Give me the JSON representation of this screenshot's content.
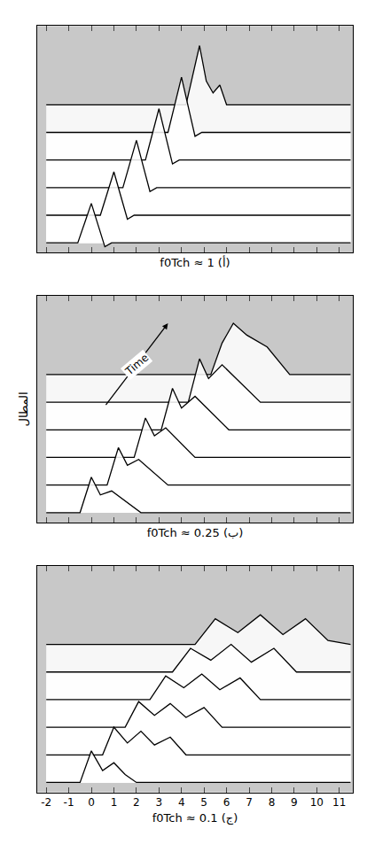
{
  "chart_data": [
    {
      "type": "line",
      "xlabel": "f0Tch ≈ 1 (أ)",
      "xlim": [
        -2.4,
        11.6
      ],
      "xticks": [
        -2,
        -1,
        0,
        1,
        2,
        3,
        4,
        5,
        6,
        7,
        8,
        9,
        10,
        11
      ],
      "ylim": [
        -0.5,
        11
      ],
      "tick_labels": false,
      "series": [
        {
          "color": "#000000",
          "x": [
            -2,
            -0.6,
            -0.3,
            0,
            0.3,
            0.6,
            0.9,
            11.5
          ],
          "values": [
            0,
            0,
            1.0,
            2.0,
            0.9,
            -0.2,
            0,
            0
          ]
        },
        {
          "color": "#000000",
          "x": [
            -2,
            0.4,
            0.7,
            1,
            1.3,
            1.6,
            1.9,
            11.5
          ],
          "values": [
            1.4,
            1.4,
            2.5,
            3.6,
            2.4,
            1.2,
            1.4,
            1.4
          ]
        },
        {
          "color": "#000000",
          "x": [
            -2,
            1.4,
            1.7,
            2,
            2.3,
            2.6,
            2.9,
            11.5
          ],
          "values": [
            2.8,
            2.8,
            4.0,
            5.2,
            3.9,
            2.6,
            2.8,
            2.8
          ]
        },
        {
          "color": "#000000",
          "x": [
            -2,
            2.4,
            2.7,
            3,
            3.3,
            3.6,
            3.9,
            11.5
          ],
          "values": [
            4.2,
            4.2,
            5.5,
            6.8,
            5.4,
            4.0,
            4.2,
            4.2
          ]
        },
        {
          "color": "#000000",
          "x": [
            -2,
            3.4,
            3.7,
            4,
            4.3,
            4.6,
            4.9,
            11.5
          ],
          "values": [
            5.6,
            5.6,
            7.0,
            8.4,
            6.9,
            5.4,
            5.6,
            5.6
          ]
        },
        {
          "color": "#000000",
          "x": [
            -2,
            4.2,
            4.5,
            4.8,
            5.1,
            5.4,
            5.7,
            6.0,
            11.5
          ],
          "values": [
            7.0,
            7.0,
            8.5,
            10.0,
            8.2,
            7.6,
            8.0,
            7.0,
            7.0
          ]
        }
      ]
    },
    {
      "type": "line",
      "xlabel": "f0Tch ≈ 0.25 (ب)",
      "ylabel": "المطال",
      "xlim": [
        -2.4,
        11.6
      ],
      "xticks": [
        -2,
        -1,
        0,
        1,
        2,
        3,
        4,
        5,
        6,
        7,
        8,
        9,
        10,
        11
      ],
      "ylim": [
        -0.5,
        11
      ],
      "tick_labels": false,
      "annotations": [
        {
          "text": "Time",
          "x": 3.4,
          "y": 9.6,
          "from_x": 0.6,
          "from_y": 5.4
        }
      ],
      "series": [
        {
          "color": "#000000",
          "x": [
            -2,
            -0.5,
            0,
            0.4,
            0.9,
            1.5,
            2.2,
            11.5
          ],
          "values": [
            0,
            0,
            1.8,
            0.9,
            1.1,
            0.6,
            0,
            0
          ]
        },
        {
          "color": "#000000",
          "x": [
            -2,
            0.7,
            1.2,
            1.6,
            2.1,
            2.7,
            3.4,
            11.5
          ],
          "values": [
            1.4,
            1.4,
            3.3,
            2.4,
            2.7,
            2.1,
            1.4,
            1.4
          ]
        },
        {
          "color": "#000000",
          "x": [
            -2,
            1.9,
            2.4,
            2.8,
            3.3,
            3.9,
            4.6,
            11.5
          ],
          "values": [
            2.8,
            2.8,
            4.8,
            3.9,
            4.3,
            3.6,
            2.8,
            2.8
          ]
        },
        {
          "color": "#000000",
          "x": [
            -2,
            3.1,
            3.6,
            4.0,
            4.6,
            5.3,
            6.1,
            11.5
          ],
          "values": [
            4.2,
            4.2,
            6.3,
            5.3,
            5.9,
            5.1,
            4.2,
            4.2
          ]
        },
        {
          "color": "#000000",
          "x": [
            -2,
            4.3,
            4.8,
            5.2,
            5.8,
            6.6,
            7.5,
            11.5
          ],
          "values": [
            5.6,
            5.6,
            7.8,
            6.8,
            7.5,
            6.6,
            5.6,
            5.6
          ]
        },
        {
          "color": "#000000",
          "x": [
            -2,
            5.3,
            5.8,
            6.3,
            6.9,
            7.8,
            8.8,
            11.5
          ],
          "values": [
            7.0,
            7.0,
            8.6,
            9.6,
            9.0,
            8.4,
            7.0,
            7.0
          ]
        }
      ]
    },
    {
      "type": "line",
      "xlabel": "f0Tch ≈ 0.1 (ج)",
      "xlim": [
        -2.4,
        11.6
      ],
      "xticks": [
        -2,
        -1,
        0,
        1,
        2,
        3,
        4,
        5,
        6,
        7,
        8,
        9,
        10,
        11
      ],
      "ylim": [
        -0.5,
        11
      ],
      "tick_labels": "x",
      "series": [
        {
          "color": "#000000",
          "x": [
            -2,
            -0.5,
            0,
            0.5,
            1,
            1.5,
            2,
            11.5
          ],
          "values": [
            0,
            0,
            1.6,
            0.6,
            1.0,
            0.4,
            0,
            0
          ]
        },
        {
          "color": "#000000",
          "x": [
            -2,
            0.5,
            1,
            1.6,
            2.2,
            2.8,
            3.5,
            4.2,
            11.5
          ],
          "values": [
            1.4,
            1.4,
            2.8,
            2.0,
            2.6,
            1.9,
            2.3,
            1.4,
            1.4
          ]
        },
        {
          "color": "#000000",
          "x": [
            -2,
            1.5,
            2.1,
            2.8,
            3.5,
            4.2,
            5,
            5.8,
            11.5
          ],
          "values": [
            2.8,
            2.8,
            4.1,
            3.4,
            4.0,
            3.3,
            3.8,
            2.8,
            2.8
          ]
        },
        {
          "color": "#000000",
          "x": [
            -2,
            2.6,
            3.3,
            4.1,
            4.9,
            5.7,
            6.6,
            7.5,
            11.5
          ],
          "values": [
            4.2,
            4.2,
            5.4,
            4.8,
            5.5,
            4.7,
            5.3,
            4.2,
            4.2
          ]
        },
        {
          "color": "#000000",
          "x": [
            -2,
            3.6,
            4.4,
            5.3,
            6.2,
            7.1,
            8.1,
            9.1,
            11.5
          ],
          "values": [
            5.6,
            5.6,
            6.8,
            6.2,
            7.0,
            6.1,
            6.8,
            5.6,
            5.6
          ]
        },
        {
          "color": "#000000",
          "x": [
            -2,
            4.6,
            5.5,
            6.5,
            7.5,
            8.5,
            9.5,
            10.5,
            11.5
          ],
          "values": [
            7.0,
            7.0,
            8.3,
            7.6,
            8.5,
            7.5,
            8.3,
            7.2,
            7.0
          ]
        }
      ]
    }
  ]
}
